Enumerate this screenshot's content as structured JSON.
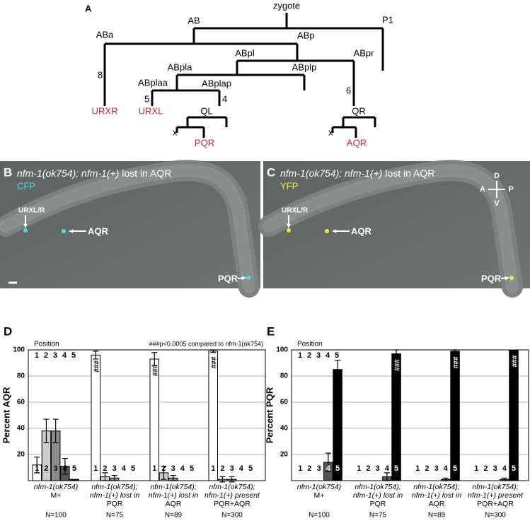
{
  "panel_labels": {
    "a": "A",
    "b": "B",
    "c": "C",
    "d": "D",
    "e": "E"
  },
  "lineage": {
    "nodes": [
      {
        "label": "zygote"
      },
      {
        "label": "AB"
      },
      {
        "label": "P1"
      },
      {
        "label": "ABa"
      },
      {
        "label": "ABp"
      },
      {
        "label": "ABpl"
      },
      {
        "label": "ABpr"
      },
      {
        "label": "ABpla"
      },
      {
        "label": "ABplp"
      },
      {
        "label": "ABplaa"
      },
      {
        "label": "ABplap"
      },
      {
        "label": "QL"
      },
      {
        "label": "QR"
      }
    ],
    "terminals": [
      {
        "label": "URXR",
        "color": "#c0272d"
      },
      {
        "label": "URXL",
        "color": "#c0272d"
      },
      {
        "label": "PQR",
        "color": "#c0272d"
      },
      {
        "label": "AQR",
        "color": "#c0272d"
      }
    ],
    "division_counts": [
      8,
      5,
      4,
      6
    ],
    "death_marks": [
      "x",
      "x"
    ]
  },
  "micrographs": [
    {
      "genotype": "nfm-1(ok754); nfm-1(+)",
      "condition": "lost in AQR",
      "channel": "CFP",
      "channel_color": "#4fd8e6",
      "cells": [
        "URXL/R",
        "AQR",
        "PQR"
      ]
    },
    {
      "genotype": "nfm-1(ok754); nfm-1(+)",
      "condition": "lost in AQR",
      "channel": "YFP",
      "channel_color": "#f2e93a",
      "cells": [
        "URXL/R",
        "AQR",
        "PQR"
      ],
      "compass": [
        "D",
        "A",
        "P",
        "V"
      ]
    }
  ],
  "chart_data": [
    {
      "type": "bar",
      "ylabel": "Percent AQR",
      "position_label": "Position",
      "annotation": "###p<0.0005 compared to nfm-1(ok754)",
      "categories": [
        [
          "nfm-1(ok754)",
          "M+"
        ],
        [
          "nfm-1(ok754);",
          "nfm-1(+) lost in",
          "PQR"
        ],
        [
          "nfm-1(ok754);",
          "nfm-1(+) lost in",
          "AQR"
        ],
        [
          "nfm-1(ok754);",
          "nfm-1(+) present",
          "PQR+AQR"
        ]
      ],
      "n_labels": [
        "N=100",
        "N=75",
        "N=89",
        "N=300"
      ],
      "ylim": [
        0,
        100
      ],
      "yticks": [
        20,
        40,
        60,
        80,
        100
      ],
      "grid": true,
      "series": [
        {
          "name": "1",
          "color": "#ffffff",
          "values": [
            12,
            96,
            93,
            99
          ],
          "errors": [
            6,
            3,
            5,
            1
          ],
          "significance": [
            null,
            "###",
            "###",
            "###"
          ]
        },
        {
          "name": "2",
          "color": "#cccccc",
          "values": [
            38,
            3,
            6,
            1
          ],
          "errors": [
            9,
            3,
            5,
            2
          ]
        },
        {
          "name": "3",
          "color": "#8c8c8c",
          "values": [
            38,
            2,
            2,
            1
          ],
          "errors": [
            9,
            2,
            2,
            2
          ]
        },
        {
          "name": "4",
          "color": "#555555",
          "values": [
            11,
            0,
            0,
            0
          ],
          "errors": [
            6,
            null,
            null,
            null
          ]
        },
        {
          "name": "5",
          "color": "#000000",
          "values": [
            1,
            0,
            0,
            0
          ],
          "errors": [
            null,
            null,
            null,
            null
          ]
        }
      ]
    },
    {
      "type": "bar",
      "ylabel": "Percent PQR",
      "position_label": "Position",
      "categories": [
        [
          "nfm-1(ok754)",
          "M+"
        ],
        [
          "nfm-1(ok754);",
          "nfm-1(+) lost in",
          "PQR"
        ],
        [
          "nfm-1(ok754);",
          "nfm-1(+) lost in",
          "AQR"
        ],
        [
          "nfm-1(ok754);",
          "nfm-1(+) present",
          "PQR+AQR"
        ]
      ],
      "n_labels": [
        "N=100",
        "N=75",
        "N=89",
        "N=300"
      ],
      "ylim": [
        0,
        100
      ],
      "yticks": [
        20,
        40,
        60,
        80,
        100
      ],
      "grid": true,
      "series": [
        {
          "name": "1",
          "color": "#ffffff",
          "values": [
            0,
            0,
            0,
            0
          ],
          "errors": [
            null,
            null,
            null,
            null
          ]
        },
        {
          "name": "2",
          "color": "#cccccc",
          "values": [
            0,
            0,
            0,
            0
          ],
          "errors": [
            null,
            null,
            null,
            null
          ]
        },
        {
          "name": "3",
          "color": "#8c8c8c",
          "values": [
            0,
            0,
            0,
            0
          ],
          "errors": [
            null,
            null,
            null,
            null
          ]
        },
        {
          "name": "4",
          "color": "#555555",
          "values": [
            14,
            3,
            1,
            1
          ],
          "errors": [
            7,
            3,
            1,
            1
          ]
        },
        {
          "name": "5",
          "color": "#000000",
          "values": [
            85,
            97,
            99,
            100
          ],
          "errors": [
            7,
            3,
            1,
            null
          ],
          "significance": [
            null,
            "###",
            "###",
            "###"
          ]
        }
      ]
    }
  ]
}
